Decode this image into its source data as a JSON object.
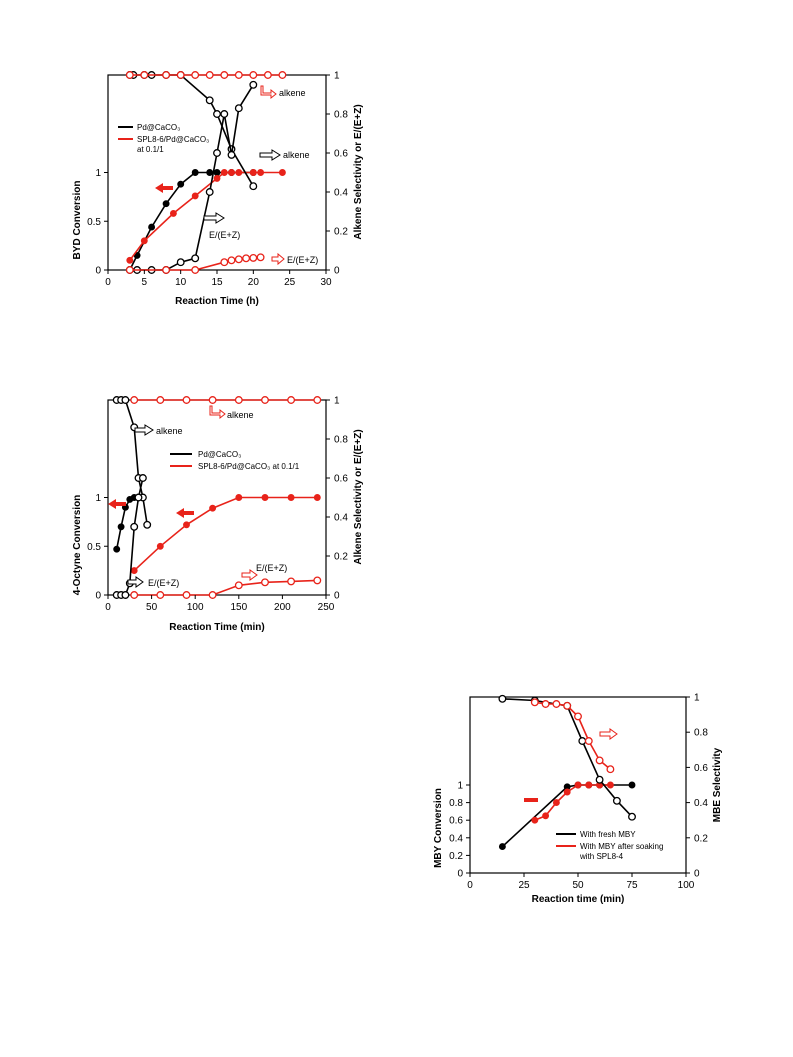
{
  "colors": {
    "black": "#000000",
    "red": "#e8231a",
    "white": "#ffffff"
  },
  "chart_data": [
    {
      "id": "byd",
      "type": "line",
      "xlabel": "Reaction Time (h)",
      "ylabel_left": "BYD Conversion",
      "ylabel_right": "Alkene Selectivity or E/(E+Z)",
      "xlim": [
        0,
        30
      ],
      "ylim_left": [
        0,
        2
      ],
      "ylim_right": [
        0,
        1
      ],
      "x_ticks": [
        "0",
        "5",
        "10",
        "15",
        "20",
        "25",
        "30"
      ],
      "y_left_ticks": [
        "0",
        "0.5",
        "1"
      ],
      "y_right_ticks": [
        "0",
        "0.2",
        "0.4",
        "0.6",
        "0.8",
        "1"
      ],
      "legend": {
        "placement": "upper-left",
        "entries": [
          {
            "lines": [
              "Pd@CaCO₃"
            ],
            "color": "#000000"
          },
          {
            "lines": [
              "SPL8-6/Pd@CaCO₃",
              "at 0.1/1"
            ],
            "color": "#e8231a"
          }
        ]
      },
      "series": [
        {
          "name": "Pd@CaCO₃",
          "measure": "conversion",
          "axis": "left",
          "color": "#000000",
          "filled": true,
          "x": [
            3,
            4,
            6,
            8,
            10,
            12,
            14,
            15,
            17,
            20
          ],
          "y": [
            0,
            0.15,
            0.44,
            0.68,
            0.88,
            1.0,
            1.0,
            1.0,
            1.0,
            1.0
          ]
        },
        {
          "name": "SPL8-6/Pd@CaCO₃ at 0.1/1",
          "measure": "conversion",
          "axis": "left",
          "color": "#e8231a",
          "filled": true,
          "x": [
            3,
            5,
            9,
            12,
            15,
            16,
            17,
            18,
            20,
            21,
            24
          ],
          "y": [
            0.1,
            0.3,
            0.58,
            0.76,
            0.94,
            1.0,
            1.0,
            1.0,
            1.0,
            1.0,
            1.0
          ]
        },
        {
          "name": "Pd@CaCO₃",
          "measure": "alkene selectivity",
          "axis": "right",
          "color": "#000000",
          "filled": false,
          "x": [
            3,
            3.5,
            5,
            6,
            8,
            10,
            14,
            15,
            17,
            20
          ],
          "y": [
            1.0,
            1.0,
            1.0,
            1.0,
            1.0,
            1.0,
            0.87,
            0.8,
            0.62,
            0.43
          ]
        },
        {
          "name": "SPL8-6/Pd@CaCO₃ at 0.1/1",
          "measure": "alkene selectivity",
          "axis": "right",
          "color": "#e8231a",
          "filled": false,
          "x": [
            3,
            5,
            8,
            10,
            12,
            14,
            16,
            18,
            20,
            22,
            24
          ],
          "y": [
            1,
            1,
            1,
            1,
            1,
            1,
            1,
            1,
            1,
            1,
            1
          ]
        },
        {
          "name": "Pd@CaCO₃",
          "measure": "E/(E+Z)",
          "axis": "right",
          "color": "#000000",
          "filled": false,
          "x": [
            3,
            4,
            6,
            8,
            10,
            12,
            14,
            15,
            16,
            17,
            18,
            20
          ],
          "y": [
            0,
            0,
            0,
            0,
            0.04,
            0.06,
            0.4,
            0.6,
            0.8,
            0.59,
            0.83,
            0.95
          ]
        },
        {
          "name": "SPL8-6/Pd@CaCO₃ at 0.1/1",
          "measure": "E/(E+Z)",
          "axis": "right",
          "color": "#e8231a",
          "filled": false,
          "x": [
            3,
            8,
            12,
            16,
            17,
            18,
            19,
            20,
            21
          ],
          "y": [
            0,
            0,
            0,
            0.04,
            0.05,
            0.055,
            0.06,
            0.062,
            0.065
          ]
        }
      ],
      "annotations": [
        {
          "text": "alkene",
          "color": "#000000"
        },
        {
          "text": "alkene",
          "color": "#e8231a"
        },
        {
          "text": "E/(E+Z)",
          "color": "#000000"
        },
        {
          "text": "E/(E+Z)",
          "color": "#e8231a"
        }
      ]
    },
    {
      "id": "octyne",
      "type": "line",
      "xlabel": "Reaction Time (min)",
      "ylabel_left": "4-Octyne Conversion",
      "ylabel_right": "Alkene Selectivity or E/(E+Z)",
      "xlim": [
        0,
        250
      ],
      "ylim_left": [
        0,
        2
      ],
      "ylim_right": [
        0,
        1
      ],
      "x_ticks": [
        "0",
        "50",
        "100",
        "150",
        "200",
        "250"
      ],
      "y_left_ticks": [
        "0",
        "0.5",
        "1"
      ],
      "y_right_ticks": [
        "0",
        "0.2",
        "0.4",
        "0.6",
        "0.8",
        "1"
      ],
      "legend": {
        "placement": "center-right",
        "entries": [
          {
            "lines": [
              "Pd@CaCO₃"
            ],
            "color": "#000000"
          },
          {
            "lines": [
              "SPL8-6/Pd@CaCO₃  at 0.1/1"
            ],
            "color": "#e8231a"
          }
        ]
      },
      "series": [
        {
          "name": "Pd@CaCO₃",
          "measure": "conversion",
          "axis": "left",
          "color": "#000000",
          "filled": true,
          "x": [
            10,
            15,
            20,
            25,
            30,
            35,
            40
          ],
          "y": [
            0.47,
            0.7,
            0.9,
            0.98,
            1.0,
            1.0,
            1.0
          ]
        },
        {
          "name": "SPL8-6/Pd@CaCO₃  at 0.1/1",
          "measure": "conversion",
          "axis": "left",
          "color": "#e8231a",
          "filled": true,
          "x": [
            30,
            60,
            90,
            120,
            150,
            180,
            210,
            240
          ],
          "y": [
            0.25,
            0.5,
            0.72,
            0.89,
            1.0,
            1.0,
            1.0,
            1.0
          ]
        },
        {
          "name": "Pd@CaCO₃",
          "measure": "alkene selectivity",
          "axis": "right",
          "color": "#000000",
          "filled": false,
          "x": [
            10,
            15,
            20,
            30,
            35,
            40,
            45
          ],
          "y": [
            1.0,
            1.0,
            1.0,
            0.86,
            0.6,
            0.5,
            0.36
          ]
        },
        {
          "name": "SPL8-6/Pd@CaCO₃  at 0.1/1",
          "measure": "alkene selectivity",
          "axis": "right",
          "color": "#e8231a",
          "filled": false,
          "x": [
            30,
            60,
            90,
            120,
            150,
            180,
            210,
            240
          ],
          "y": [
            1,
            1,
            1,
            1,
            1,
            1,
            1,
            1
          ]
        },
        {
          "name": "Pd@CaCO₃",
          "measure": "E/(E+Z)",
          "axis": "right",
          "color": "#000000",
          "filled": false,
          "x": [
            10,
            15,
            20,
            25,
            30,
            35,
            40
          ],
          "y": [
            0,
            0,
            0,
            0.06,
            0.35,
            0.5,
            0.6
          ]
        },
        {
          "name": "SPL8-6/Pd@CaCO₃  at 0.1/1",
          "measure": "E/(E+Z)",
          "axis": "right",
          "color": "#e8231a",
          "filled": false,
          "x": [
            30,
            60,
            90,
            120,
            150,
            180,
            210,
            240
          ],
          "y": [
            0,
            0,
            0,
            0,
            0.05,
            0.065,
            0.07,
            0.075
          ]
        }
      ],
      "annotations": [
        {
          "text": "alkene",
          "color": "#000000"
        },
        {
          "text": "alkene",
          "color": "#e8231a"
        },
        {
          "text": "E/(E+Z)",
          "color": "#000000"
        },
        {
          "text": "E/(E+Z)",
          "color": "#000000"
        }
      ]
    },
    {
      "id": "mby",
      "type": "line",
      "xlabel": "Reaction time (min)",
      "ylabel_left": "MBY Conversion",
      "ylabel_right": "MBE Selectivity",
      "xlim": [
        0,
        100
      ],
      "ylim_left": [
        0,
        2
      ],
      "ylim_right": [
        0,
        1
      ],
      "x_ticks": [
        "0",
        "25",
        "50",
        "75",
        "100"
      ],
      "y_left_ticks": [
        "0",
        "0.2",
        "0.4",
        "0.6",
        "0.8",
        "1"
      ],
      "y_right_ticks": [
        "0",
        "0.2",
        "0.4",
        "0.6",
        "0.8",
        "1"
      ],
      "legend": {
        "placement": "lower-right",
        "entries": [
          {
            "lines": [
              "With fresh MBY"
            ],
            "color": "#000000"
          },
          {
            "lines": [
              "With MBY after soaking",
              "with SPL8-4"
            ],
            "color": "#e8231a"
          }
        ]
      },
      "series": [
        {
          "name": "With fresh MBY",
          "measure": "conversion",
          "axis": "left",
          "color": "#000000",
          "filled": true,
          "x": [
            15,
            45,
            50,
            55,
            60,
            75
          ],
          "y": [
            0.3,
            0.98,
            1.0,
            1.0,
            1.0,
            1.0
          ]
        },
        {
          "name": "With MBY after soaking with SPL8-4",
          "measure": "conversion",
          "axis": "left",
          "color": "#e8231a",
          "filled": true,
          "x": [
            30,
            35,
            40,
            45,
            50,
            55,
            60,
            65
          ],
          "y": [
            0.6,
            0.65,
            0.8,
            0.92,
            1.0,
            1.0,
            1.0,
            1.0
          ]
        },
        {
          "name": "With fresh MBY",
          "measure": "MBE selectivity",
          "axis": "right",
          "color": "#000000",
          "filled": false,
          "x": [
            15,
            30,
            45,
            52,
            60,
            68,
            75
          ],
          "y": [
            0.99,
            0.98,
            0.95,
            0.75,
            0.53,
            0.41,
            0.32
          ]
        },
        {
          "name": "With MBY after soaking with SPL8-4",
          "measure": "MBE selectivity",
          "axis": "right",
          "color": "#e8231a",
          "filled": false,
          "x": [
            30,
            35,
            40,
            45,
            50,
            55,
            60,
            65
          ],
          "y": [
            0.97,
            0.96,
            0.96,
            0.95,
            0.89,
            0.75,
            0.64,
            0.59
          ]
        }
      ],
      "annotations": []
    }
  ]
}
